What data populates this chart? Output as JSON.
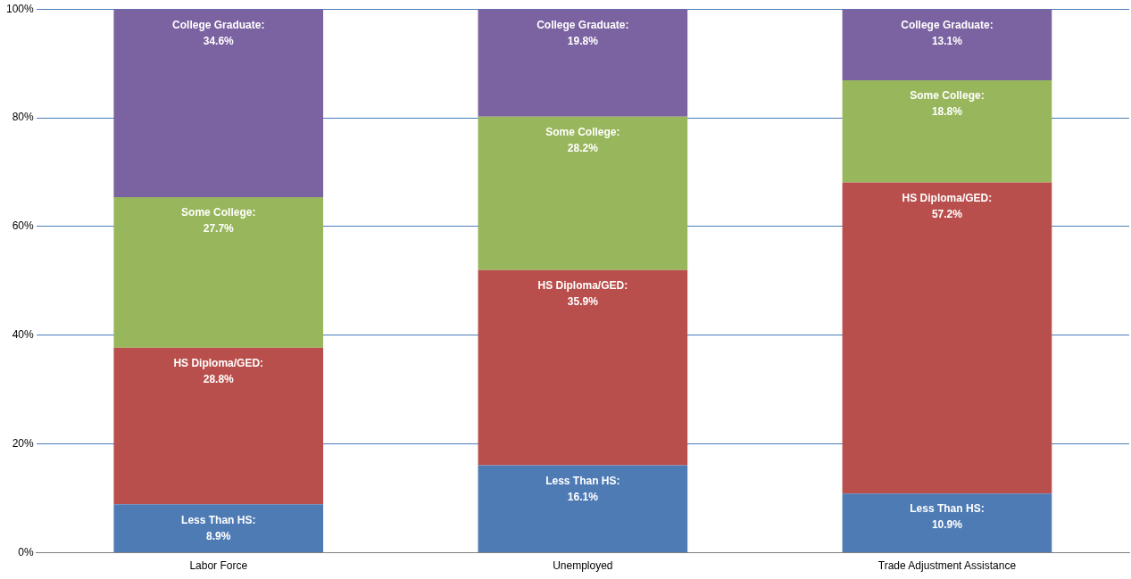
{
  "chart_data": {
    "type": "bar",
    "stacked": true,
    "categories": [
      "Labor Force",
      "Unemployed",
      "Trade Adjustment Assistance"
    ],
    "series": [
      {
        "name": "Less Than HS:",
        "color": "#4f7bb5",
        "values": [
          8.9,
          16.1,
          10.9
        ],
        "value_labels": [
          "8.9%",
          "16.1%",
          "10.9%"
        ]
      },
      {
        "name": "HS Diploma/GED:",
        "color": "#b94f4c",
        "values": [
          28.8,
          35.9,
          57.2
        ],
        "value_labels": [
          "28.8%",
          "35.9%",
          "57.2%"
        ]
      },
      {
        "name": "Some College:",
        "color": "#98b65c",
        "values": [
          27.7,
          28.2,
          18.8
        ],
        "value_labels": [
          "27.7%",
          "28.2%",
          "18.8%"
        ]
      },
      {
        "name": "College Graduate:",
        "color": "#7b62a0",
        "values": [
          34.6,
          19.8,
          13.1
        ],
        "value_labels": [
          "34.6%",
          "19.8%",
          "13.1%"
        ]
      }
    ],
    "ylim": [
      0,
      100
    ],
    "yticks": [
      {
        "value": 0,
        "label": "0%"
      },
      {
        "value": 20,
        "label": "20%"
      },
      {
        "value": 40,
        "label": "40%"
      },
      {
        "value": 60,
        "label": "60%"
      },
      {
        "value": 80,
        "label": "80%"
      },
      {
        "value": 100,
        "label": "100%"
      }
    ],
    "grid": "y",
    "legend": false
  }
}
